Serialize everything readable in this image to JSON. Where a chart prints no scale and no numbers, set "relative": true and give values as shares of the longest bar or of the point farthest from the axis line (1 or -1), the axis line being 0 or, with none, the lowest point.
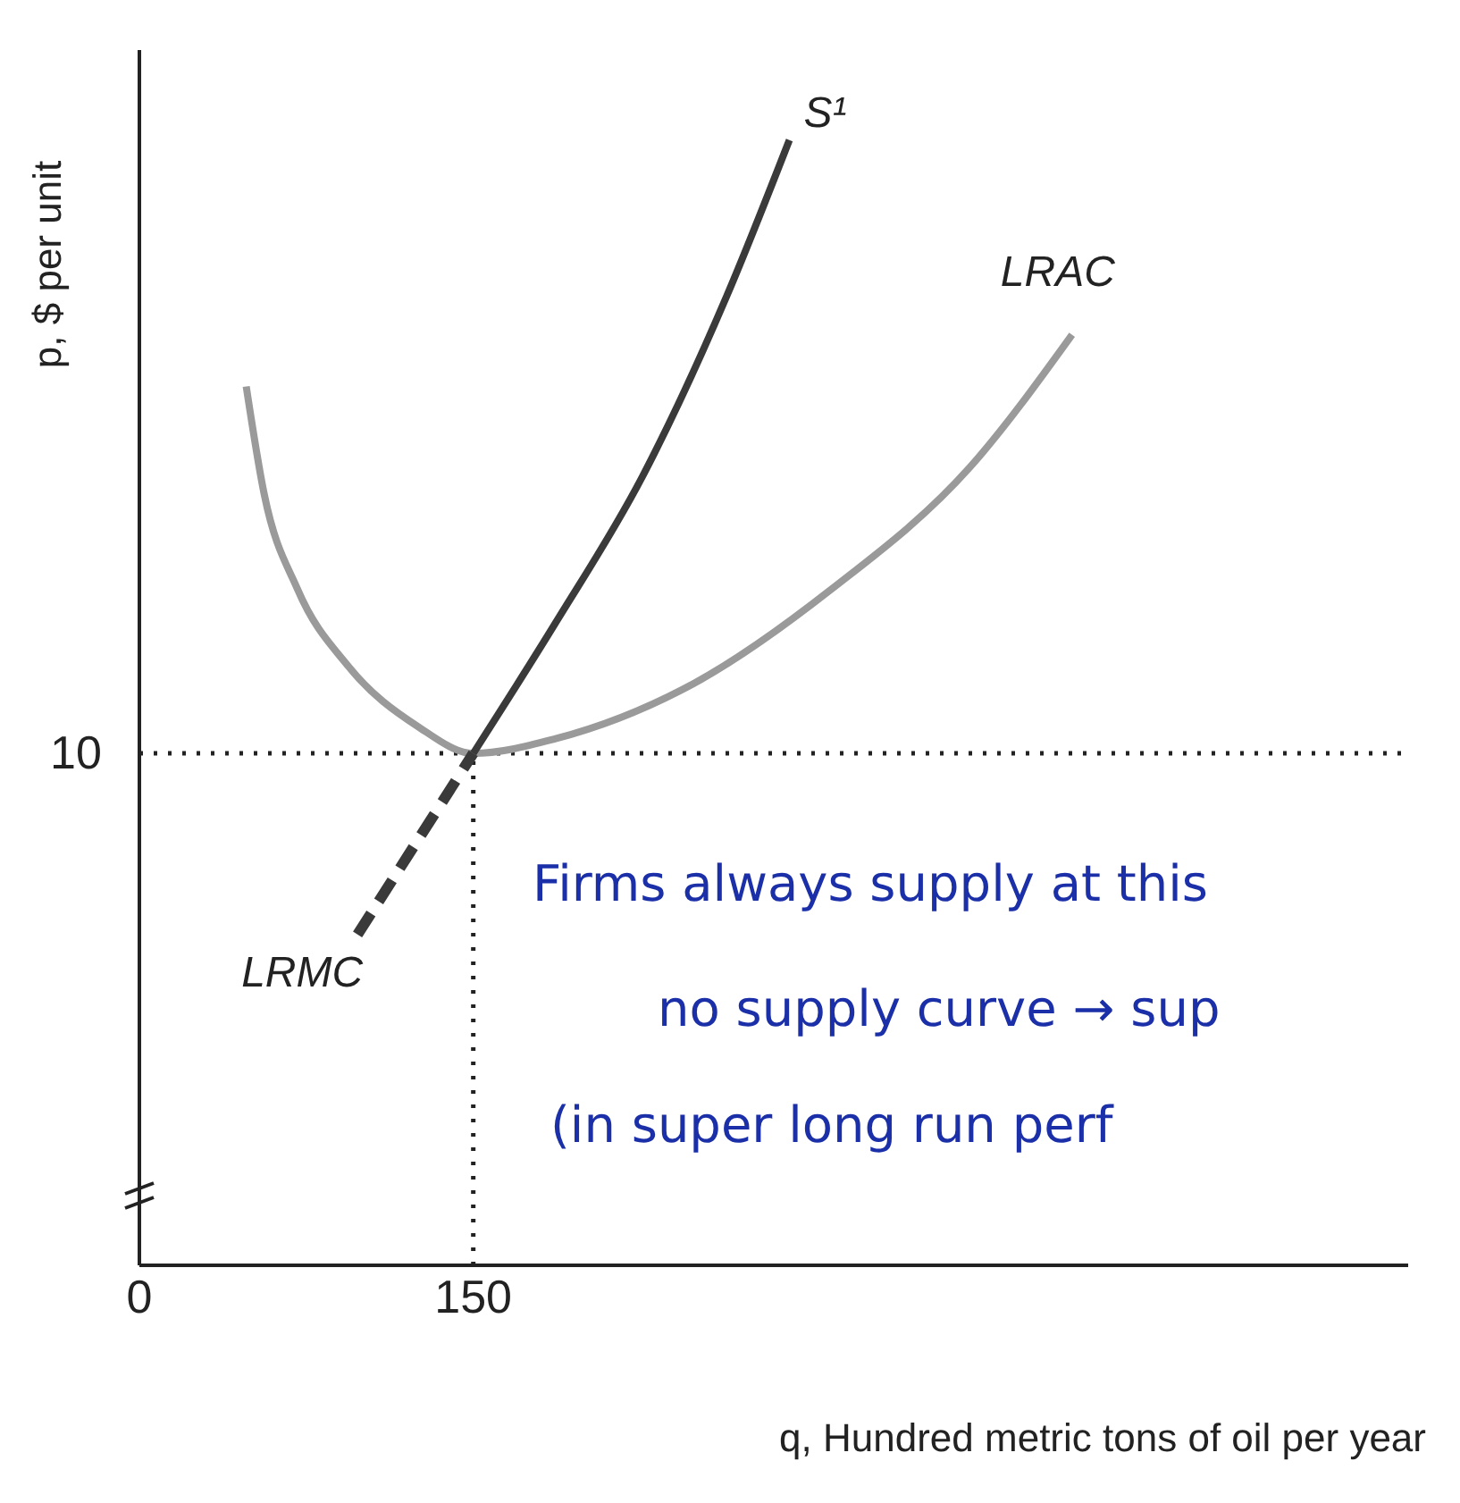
{
  "chart_data": {
    "type": "line",
    "relative": true,
    "xlabel": "q, Hundred metric tons of oil per year",
    "ylabel": "p, $ per unit",
    "xlim": [
      0,
      570
    ],
    "xticks": [
      0,
      150
    ],
    "tick_labels": "x",
    "marker": "none",
    "series": [
      {
        "name": "LRAC",
        "color": "#9a9a9a",
        "line_style": "solid",
        "x": [
          48,
          56,
          71,
          94,
          125,
          150,
          187,
          249,
          311,
          373,
          419
        ],
        "values": [
          0.781,
          0.686,
          0.601,
          0.532,
          0.479,
          0.455,
          0.468,
          0.517,
          0.601,
          0.709,
          0.827
        ]
      },
      {
        "name": "S¹",
        "color": "#3a3a3a",
        "line_style": "solid",
        "x": [
          150,
          187,
          226,
          264,
          292
        ],
        "values": [
          0.455,
          0.571,
          0.701,
          0.862,
          1
        ]
      },
      {
        "name": "LRMC",
        "color": "#3a3a3a",
        "line_style": "dashed",
        "x": [
          98,
          150
        ],
        "values": [
          0.294,
          0.455
        ]
      }
    ],
    "ref_lines": [
      {
        "axis": "y",
        "value": 0.455,
        "line_style": "dotted",
        "color": "#222222"
      },
      {
        "axis": "x",
        "value": 150,
        "line_style": "dotted",
        "color": "#222222"
      }
    ],
    "annotations": [
      "10",
      "Firms always supply at this",
      "no supply curve → sup",
      "(in super long run perf"
    ]
  }
}
